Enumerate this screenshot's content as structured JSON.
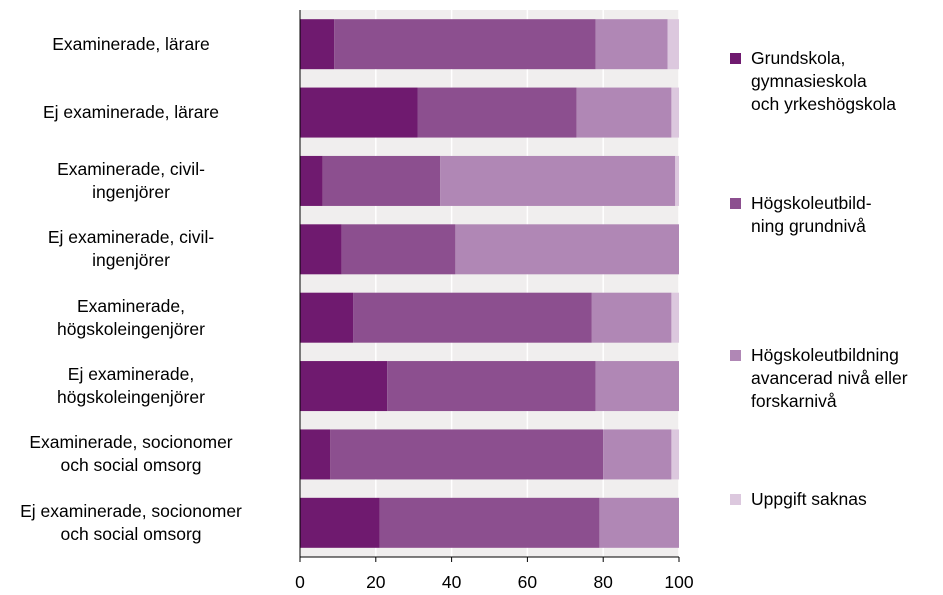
{
  "chart_data": {
    "type": "bar",
    "orientation": "horizontal",
    "stacked": true,
    "title": "",
    "xlabel": "",
    "ylabel": "",
    "xlim": [
      0,
      100
    ],
    "x_ticks": [
      "0",
      "20",
      "40",
      "60",
      "80",
      "100"
    ],
    "grid": true,
    "legend_position": "right",
    "categories": [
      [
        "Examinerade, lärare"
      ],
      [
        "Ej examinerade, lärare"
      ],
      [
        "Examinerade, civil-",
        "ingenjörer"
      ],
      [
        "Ej examinerade, civil-",
        "ingenjörer"
      ],
      [
        "Examinerade,",
        "högskoleingenjörer"
      ],
      [
        "Ej examinerade,",
        "högskoleingenjörer"
      ],
      [
        "Examinerade, socionomer",
        "och social omsorg"
      ],
      [
        "Ej examinerade, socionomer",
        "och social omsorg"
      ]
    ],
    "series": [
      {
        "name": [
          "Grundskola,",
          "gymnasieskola",
          "och yrkeshögskola"
        ],
        "color": "#6f1a6f",
        "values": [
          9,
          31,
          6,
          11,
          14,
          23,
          8,
          21
        ]
      },
      {
        "name": [
          "Högskoleutbild-",
          "ning grundnivå"
        ],
        "color": "#8c4f8f",
        "values": [
          69,
          42,
          31,
          30,
          63,
          55,
          72,
          58
        ]
      },
      {
        "name": [
          "Högskoleutbildning",
          "avancerad nivå eller",
          "forskarnivå"
        ],
        "color": "#b087b5",
        "values": [
          19,
          25,
          62,
          59,
          21,
          22,
          18,
          21
        ]
      },
      {
        "name": [
          "Uppgift saknas"
        ],
        "color": "#dcc8de",
        "values": [
          3,
          2,
          1,
          0,
          2,
          0,
          2,
          0
        ]
      }
    ]
  }
}
